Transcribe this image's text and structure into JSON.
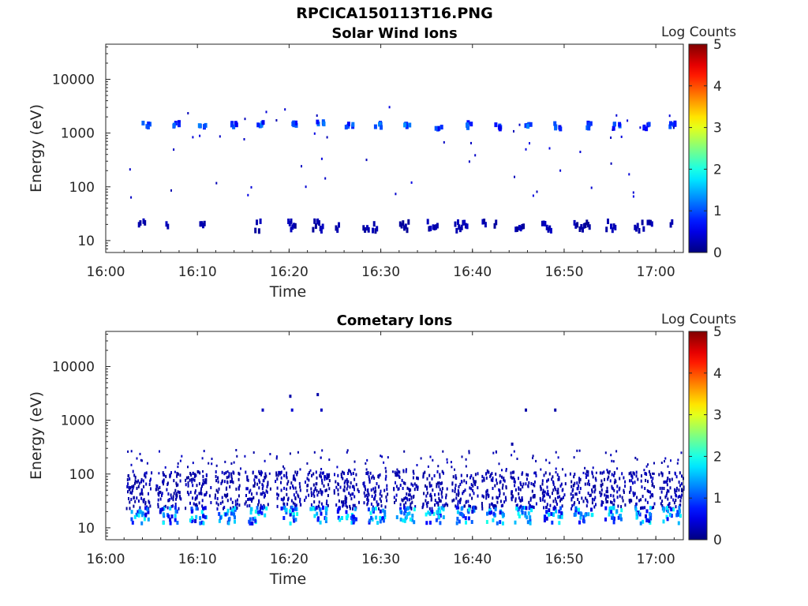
{
  "figure_title": "RPCICA150113T16.PNG",
  "chart_data": [
    {
      "type": "heatmap",
      "title": "Solar Wind Ions",
      "xlabel": "Time",
      "ylabel": "Energy (eV)",
      "x_ticks": [
        "16:00",
        "16:10",
        "16:20",
        "16:30",
        "16:40",
        "16:50",
        "17:00"
      ],
      "y_ticks": [
        "10",
        "100",
        "1000",
        "10000"
      ],
      "y_scale": "log",
      "ylim": [
        6,
        45000
      ],
      "xlim": [
        "16:00",
        "17:03"
      ],
      "colorbar": {
        "label": "Log Counts",
        "range": [
          0,
          5
        ],
        "ticks": [
          "0",
          "1",
          "2",
          "3",
          "4",
          "5"
        ],
        "colormap": "jet"
      },
      "description_points": [
        {
          "t": 4.2,
          "e": 1400,
          "v": 0.9
        },
        {
          "t": 7.5,
          "e": 1450,
          "v": 0.8
        },
        {
          "t": 10.3,
          "e": 1400,
          "v": 0.9
        },
        {
          "t": 13.7,
          "e": 1450,
          "v": 0.9
        },
        {
          "t": 16.9,
          "e": 1500,
          "v": 0.9
        },
        {
          "t": 20.2,
          "e": 1500,
          "v": 1.0
        },
        {
          "t": 23.3,
          "e": 1450,
          "v": 1.0
        },
        {
          "t": 26.5,
          "e": 1350,
          "v": 0.8
        },
        {
          "t": 29.7,
          "e": 1400,
          "v": 0.9
        },
        {
          "t": 32.8,
          "e": 1400,
          "v": 0.9
        },
        {
          "t": 36.2,
          "e": 1350,
          "v": 0.8
        },
        {
          "t": 39.5,
          "e": 1400,
          "v": 0.8
        },
        {
          "t": 42.6,
          "e": 1350,
          "v": 0.8
        },
        {
          "t": 45.8,
          "e": 1400,
          "v": 0.9
        },
        {
          "t": 49.0,
          "e": 1350,
          "v": 0.8
        },
        {
          "t": 52.3,
          "e": 1400,
          "v": 0.8
        },
        {
          "t": 55.5,
          "e": 1350,
          "v": 0.8
        },
        {
          "t": 58.8,
          "e": 1350,
          "v": 0.7
        },
        {
          "t": 61.8,
          "e": 1400,
          "v": 0.8
        }
      ],
      "background_points": [
        {
          "t": 3.5,
          "e": 18,
          "v": 0.2
        },
        {
          "t": 6.5,
          "e": 18,
          "v": 0.2
        },
        {
          "t": 10.0,
          "e": 18,
          "v": 0.2
        },
        {
          "t": 16.5,
          "e": 18,
          "v": 0.2
        },
        {
          "t": 19.8,
          "e": 18,
          "v": 0.2
        },
        {
          "t": 22.8,
          "e": 18,
          "v": 0.2
        },
        {
          "t": 28.0,
          "e": 18,
          "v": 0.2
        },
        {
          "t": 32.5,
          "e": 18,
          "v": 0.2
        },
        {
          "t": 38.0,
          "e": 18,
          "v": 0.2
        },
        {
          "t": 45.5,
          "e": 18,
          "v": 0.2
        },
        {
          "t": 51.5,
          "e": 18,
          "v": 0.2
        },
        {
          "t": 58.5,
          "e": 18,
          "v": 0.2
        }
      ]
    },
    {
      "type": "heatmap",
      "title": "Cometary Ions",
      "xlabel": "Time",
      "ylabel": "Energy (eV)",
      "x_ticks": [
        "16:00",
        "16:10",
        "16:20",
        "16:30",
        "16:40",
        "16:50",
        "17:00"
      ],
      "y_ticks": [
        "10",
        "100",
        "1000",
        "10000"
      ],
      "y_scale": "log",
      "ylim": [
        6,
        45000
      ],
      "xlim": [
        "16:00",
        "17:03"
      ],
      "colorbar": {
        "label": "Log Counts",
        "range": [
          0,
          5
        ],
        "ticks": [
          "0",
          "1",
          "2",
          "3",
          "4",
          "5"
        ],
        "colormap": "jet"
      },
      "burst_times_min": [
        3.6,
        6.8,
        10.0,
        13.2,
        16.5,
        19.8,
        23.0,
        26.2,
        29.4,
        32.6,
        35.8,
        39.1,
        42.3,
        45.5,
        48.7,
        52.0,
        55.2,
        58.4,
        61.6
      ],
      "sparse_points": [
        {
          "t": 17.0,
          "e": 1550,
          "v": 0.3
        },
        {
          "t": 20.2,
          "e": 1550,
          "v": 0.4
        },
        {
          "t": 23.4,
          "e": 1550,
          "v": 0.3
        },
        {
          "t": 45.7,
          "e": 1550,
          "v": 0.2
        },
        {
          "t": 48.9,
          "e": 1550,
          "v": 0.2
        },
        {
          "t": 20.0,
          "e": 2800,
          "v": 0.2
        },
        {
          "t": 23.0,
          "e": 3000,
          "v": 0.2
        },
        {
          "t": 44.2,
          "e": 360,
          "v": 0.2
        }
      ]
    }
  ]
}
